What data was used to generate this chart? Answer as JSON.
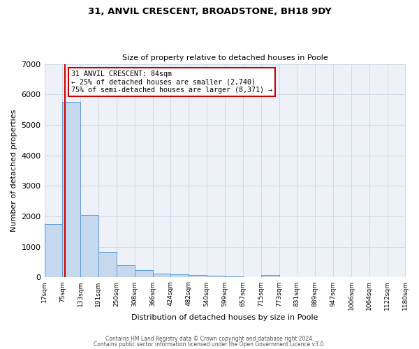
{
  "title_line1": "31, ANVIL CRESCENT, BROADSTONE, BH18 9DY",
  "title_line2": "Size of property relative to detached houses in Poole",
  "xlabel": "Distribution of detached houses by size in Poole",
  "ylabel": "Number of detached properties",
  "bin_edges": [
    17,
    75,
    133,
    191,
    250,
    308,
    366,
    424,
    482,
    540,
    599,
    657,
    715,
    773,
    831,
    889,
    947,
    1006,
    1064,
    1122,
    1180
  ],
  "bin_labels": [
    "17sqm",
    "75sqm",
    "133sqm",
    "191sqm",
    "250sqm",
    "308sqm",
    "366sqm",
    "424sqm",
    "482sqm",
    "540sqm",
    "599sqm",
    "657sqm",
    "715sqm",
    "773sqm",
    "831sqm",
    "889sqm",
    "947sqm",
    "1006sqm",
    "1064sqm",
    "1122sqm",
    "1180sqm"
  ],
  "bar_heights": [
    1750,
    5750,
    2050,
    830,
    390,
    230,
    120,
    95,
    75,
    55,
    30,
    20,
    85,
    5,
    5,
    5,
    5,
    5,
    5,
    5
  ],
  "bar_color": "#c5d8ed",
  "bar_edge_color": "#5b9bd5",
  "vline_x": 84,
  "vline_color": "#cc0000",
  "annotation_line1": "31 ANVIL CRESCENT: 84sqm",
  "annotation_line2": "← 25% of detached houses are smaller (2,740)",
  "annotation_line3": "75% of semi-detached houses are larger (8,371) →",
  "annotation_box_color": "#cc0000",
  "ylim": [
    0,
    7000
  ],
  "yticks": [
    0,
    1000,
    2000,
    3000,
    4000,
    5000,
    6000,
    7000
  ],
  "grid_color": "#d0dcea",
  "bg_color": "#eef2f8",
  "footer_line1": "Contains HM Land Registry data © Crown copyright and database right 2024.",
  "footer_line2": "Contains public sector information licensed under the Open Government Licence v3.0."
}
